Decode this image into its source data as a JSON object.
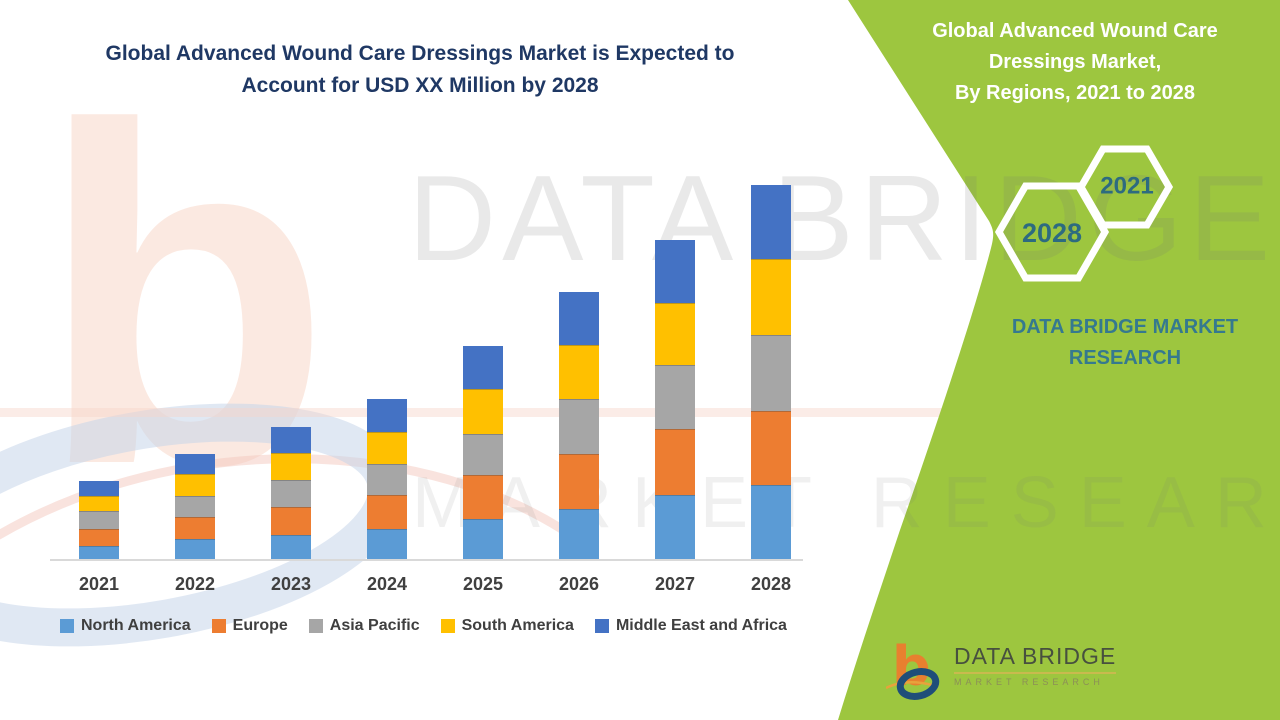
{
  "main_title": {
    "line1": "Global Advanced Wound Care Dressings Market is Expected to",
    "line2": "Account for USD XX Million by 2028"
  },
  "watermark": {
    "line1": "DATA BRIDGE",
    "line2": "MARKET RESEARCH"
  },
  "side_panel": {
    "background_color": "#9dc63f",
    "title_line1": "Global Advanced Wound Care",
    "title_line2": "Dressings Market,",
    "title_line3": "By Regions, 2021 to 2028",
    "hexagons": [
      {
        "year": "2021"
      },
      {
        "year": "2028"
      }
    ],
    "brand_text": "DATA BRIDGE MARKET RESEARCH",
    "logo": {
      "name": "DATA BRIDGE",
      "sub": "MARKET RESEARCH"
    }
  },
  "chart_data": {
    "type": "bar",
    "stacked": true,
    "title": "Global Advanced Wound Care Dressings Market is Expected to Account for USD XX Million by 2028",
    "subtitle": "Global Advanced Wound Care Dressings Market, By Regions, 2021 to 2028",
    "categories": [
      "2021",
      "2022",
      "2023",
      "2024",
      "2025",
      "2026",
      "2027",
      "2028"
    ],
    "series": [
      {
        "name": "North America",
        "color": "#5b9bd5",
        "values": [
          14,
          21,
          25,
          31,
          41,
          51,
          65,
          75
        ]
      },
      {
        "name": "Europe",
        "color": "#ed7d31",
        "values": [
          17,
          22,
          28,
          34,
          44,
          55,
          66,
          74
        ]
      },
      {
        "name": "Asia Pacific",
        "color": "#a6a6a6",
        "values": [
          18,
          21,
          27,
          31,
          41,
          55,
          64,
          76
        ]
      },
      {
        "name": "South America",
        "color": "#ffc000",
        "values": [
          15,
          22,
          27,
          32,
          45,
          54,
          62,
          76
        ]
      },
      {
        "name": "Middle East and Africa",
        "color": "#4472c4",
        "values": [
          15,
          20,
          26,
          33,
          43,
          53,
          63,
          74
        ]
      }
    ],
    "xlabel": "",
    "ylabel": "",
    "units": "relative height; actual values undisclosed (USD XX Million placeholder)",
    "value_axis_visible": false,
    "ylim": [
      0,
      400
    ],
    "grid": false,
    "legend_position": "bottom"
  }
}
